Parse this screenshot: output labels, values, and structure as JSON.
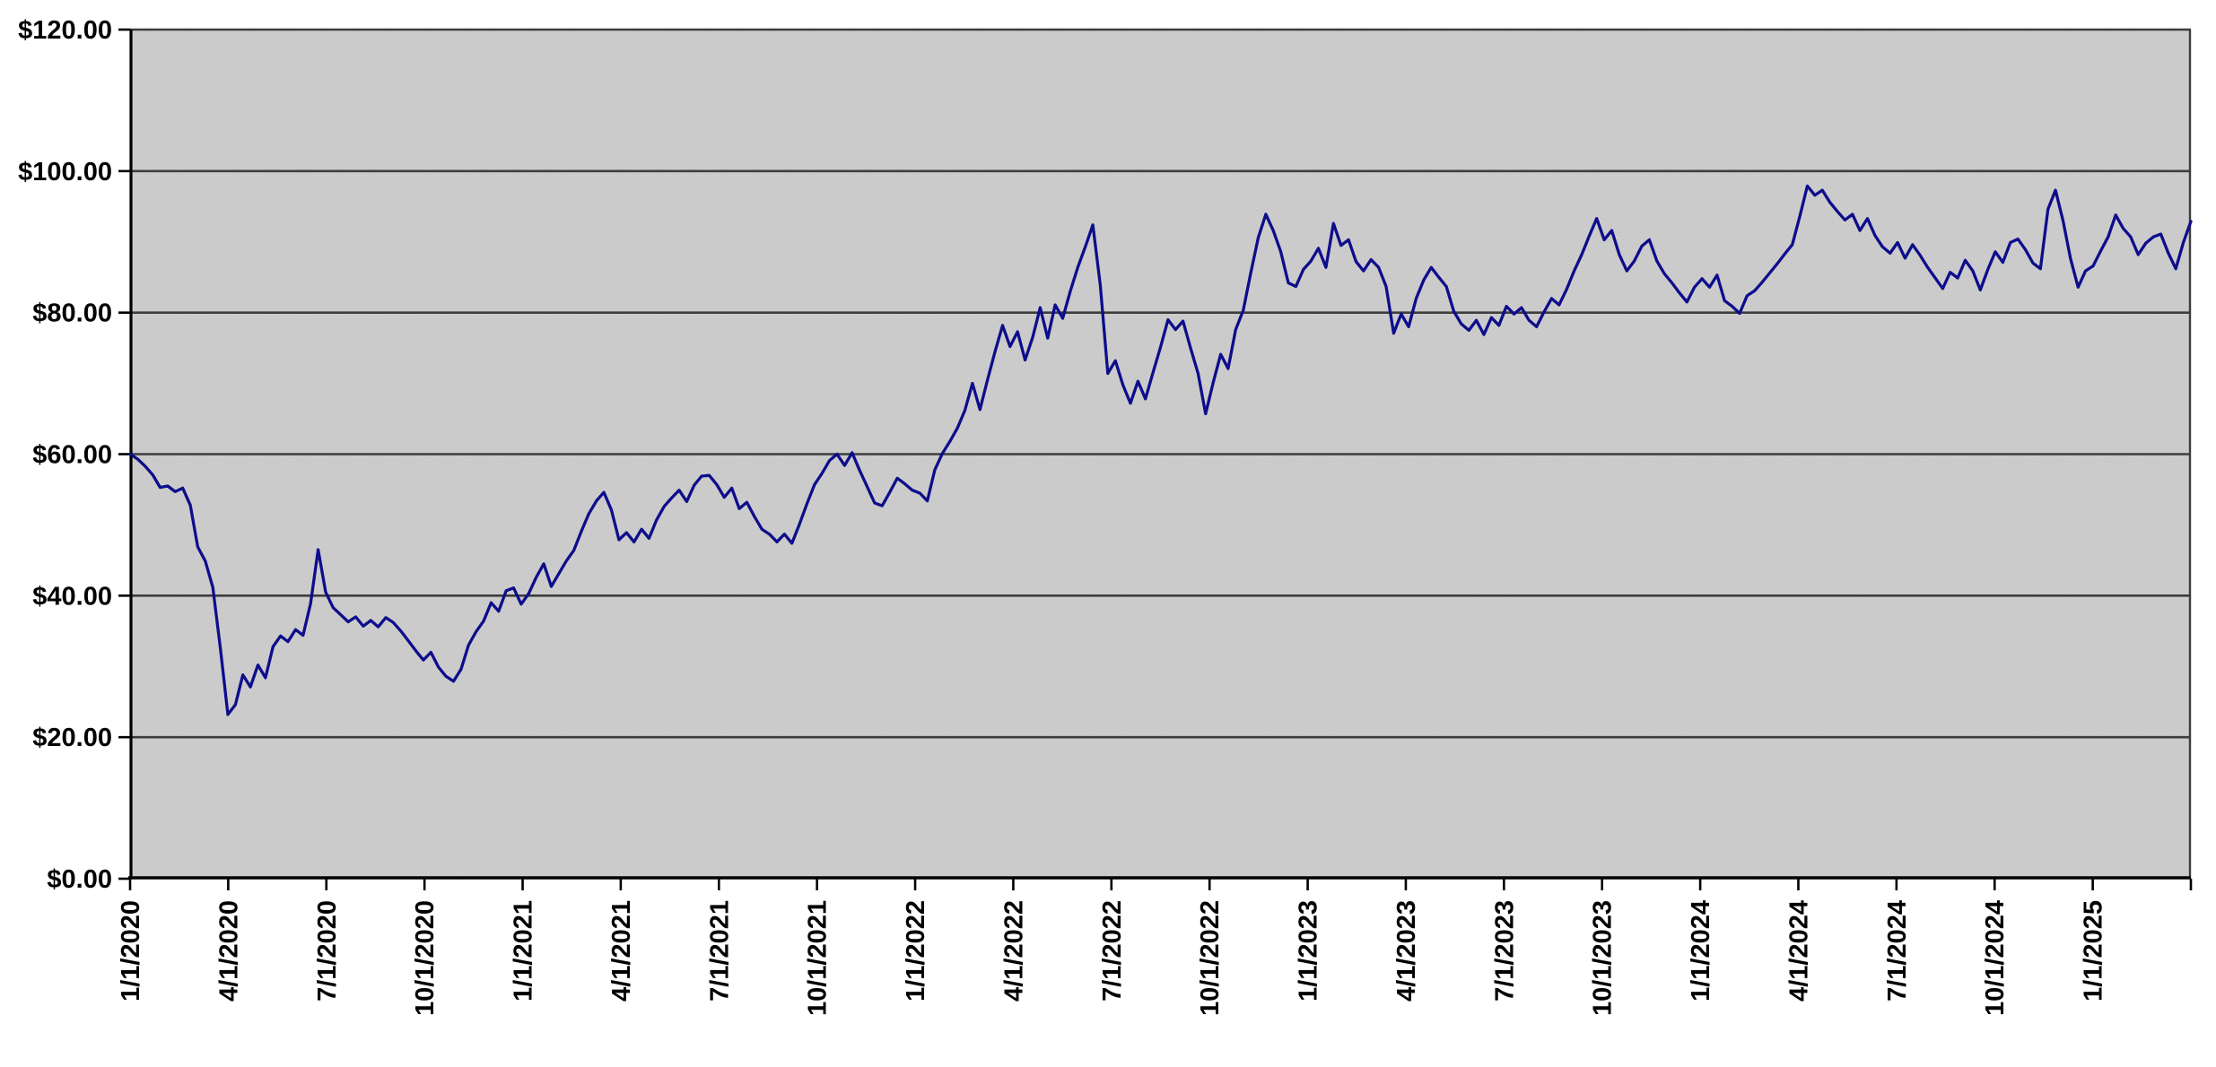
{
  "chart_data": {
    "type": "line",
    "title": "",
    "legend": null,
    "grid": "horizontal",
    "y_axis": {
      "min": 0,
      "max": 120,
      "step": 20,
      "tick_labels": [
        "$120.00",
        "$100.00",
        "$80.00",
        "$60.00",
        "$40.00",
        "$20.00",
        "$0.00"
      ]
    },
    "x_axis": {
      "tick_labels": [
        "1/1/2020",
        "4/1/2020",
        "7/1/2020",
        "10/1/2020",
        "1/1/2021",
        "4/1/2021",
        "7/1/2021",
        "10/1/2021",
        "1/1/2022",
        "4/1/2022",
        "7/1/2022",
        "10/1/2022",
        "1/1/2023",
        "4/1/2023",
        "7/1/2023",
        "10/1/2023",
        "1/1/2024",
        "4/1/2024",
        "7/1/2024",
        "10/1/2024",
        "1/1/2025"
      ],
      "label_rotation_deg": -90
    },
    "colors": {
      "line": "#0d0d8c",
      "plot_bg": "#c8c8c8",
      "plot_bg_alt": "#cecece",
      "grid": "#3d3d3d",
      "axis": "#000000",
      "page_bg": "#ffffff",
      "label": "#000000"
    },
    "series": [
      {
        "color": "#0d0d8c",
        "interval": "weekly",
        "values": [
          60.0,
          59.3,
          58.3,
          57.1,
          55.3,
          55.5,
          54.7,
          55.2,
          52.8,
          46.9,
          44.9,
          41.2,
          32.6,
          23.2,
          24.6,
          28.8,
          27.1,
          30.2,
          28.4,
          32.8,
          34.3,
          33.5,
          35.2,
          34.4,
          38.9,
          46.5,
          40.5,
          38.3,
          37.3,
          36.3,
          37.0,
          35.7,
          36.5,
          35.6,
          36.9,
          36.2,
          35.0,
          33.6,
          32.2,
          30.9,
          32.0,
          29.9,
          28.6,
          27.9,
          29.6,
          33.0,
          34.9,
          36.4,
          39.0,
          37.8,
          40.7,
          41.1,
          38.8,
          40.3,
          42.6,
          44.5,
          41.3,
          43.1,
          44.9,
          46.4,
          49.1,
          51.6,
          53.4,
          54.6,
          52.1,
          47.9,
          48.9,
          47.6,
          49.4,
          48.1,
          50.7,
          52.6,
          53.8,
          54.9,
          53.3,
          55.6,
          56.9,
          57.0,
          55.7,
          53.9,
          55.2,
          52.3,
          53.2,
          51.2,
          49.4,
          48.7,
          47.6,
          48.7,
          47.4,
          50.1,
          53.0,
          55.7,
          57.3,
          59.1,
          60.0,
          58.4,
          60.2,
          57.7,
          55.4,
          53.1,
          52.7,
          54.6,
          56.6,
          55.8,
          54.9,
          54.5,
          53.4,
          57.8,
          60.1,
          61.8,
          63.7,
          66.2,
          70.0,
          66.3,
          70.5,
          74.5,
          78.2,
          75.2,
          77.3,
          73.3,
          76.5,
          80.7,
          76.4,
          81.1,
          79.2,
          83.0,
          86.4,
          89.3,
          92.4,
          83.9,
          71.4,
          73.2,
          69.8,
          67.2,
          70.3,
          67.8,
          71.5,
          75.1,
          79.0,
          77.6,
          78.8,
          75.0,
          71.4,
          65.7,
          70.1,
          74.1,
          72.1,
          77.6,
          80.3,
          85.6,
          90.6,
          93.9,
          91.6,
          88.6,
          84.2,
          83.7,
          86.1,
          87.3,
          89.1,
          86.4,
          92.6,
          89.5,
          90.3,
          87.2,
          85.9,
          87.5,
          86.4,
          83.7,
          77.1,
          79.8,
          78.0,
          82.0,
          84.6,
          86.4,
          85.0,
          83.7,
          80.2,
          78.4,
          77.5,
          78.9,
          76.9,
          79.3,
          78.2,
          80.9,
          79.8,
          80.7,
          78.9,
          78.0,
          80.1,
          82.0,
          81.1,
          83.3,
          85.9,
          88.2,
          90.8,
          93.3,
          90.3,
          91.6,
          88.2,
          85.9,
          87.3,
          89.4,
          90.3,
          87.3,
          85.5,
          84.2,
          82.8,
          81.5,
          83.6,
          84.8,
          83.6,
          85.3,
          81.7,
          80.9,
          79.9,
          82.4,
          83.1,
          84.3,
          85.6,
          86.9,
          88.3,
          89.6,
          93.6,
          97.9,
          96.6,
          97.3,
          95.6,
          94.3,
          93.1,
          93.9,
          91.6,
          93.3,
          90.9,
          89.3,
          88.4,
          89.9,
          87.7,
          89.6,
          88.1,
          86.4,
          84.9,
          83.4,
          85.7,
          84.9,
          87.4,
          85.9,
          83.2,
          86.1,
          88.6,
          87.1,
          89.9,
          90.4,
          88.9,
          87.0,
          86.2,
          94.6,
          97.3,
          93.0,
          87.6,
          83.6,
          85.9,
          86.6,
          88.7,
          90.7,
          93.8,
          91.9,
          90.7,
          88.2,
          89.8,
          90.7,
          91.1,
          88.4,
          86.2,
          89.9,
          92.9
        ]
      }
    ]
  }
}
